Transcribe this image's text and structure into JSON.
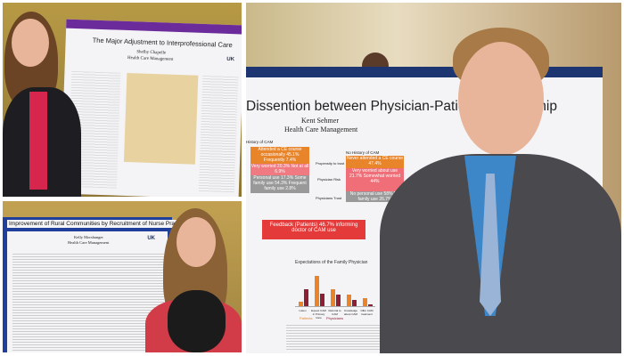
{
  "posters": {
    "top_left": {
      "title": "The Major Adjustment to Interprofessional Care",
      "author": "Shelby Chapelle",
      "program": "Health Care Management",
      "logo": "UK"
    },
    "bottom_left": {
      "title": "Improvement of Rural Communities by Recruitment of Nurse Practitioners",
      "author": "Kelly Morshanger",
      "program": "Health Care Management",
      "logo": "UK"
    },
    "right": {
      "title": "Dissention between Physician-Patient Relationship",
      "author": "Kent Sehmer",
      "program": "Health Care Management",
      "history": "History of CAM",
      "no_history": "No History of CAM",
      "box1": "Attended a CE course occasionally 45.1% Frequently 7.4%",
      "box2": "Very worried 20.3% Not at all 6.9%",
      "box3": "Personal use 17.3% Some family use 54.3% Frequent family use 2.8%",
      "box4": "Never attended a CE course 47.4%",
      "box5": "Very worried about use 21.7% Somewhat worried 44%",
      "box6": "No personal use 58% No family use 26.7%",
      "mid1": "Propensity to trust",
      "mid2": "Physician Risk",
      "mid3": "Physicians Trust",
      "feedback": "Feedback (Patients) 46.7% informing doctor of CAM use",
      "chart_title": "Expectations of the Family Physician",
      "chart_categories": [
        "Listen",
        "Expect CAM in Primary Care",
        "Referral to CAM",
        "Knowledge about CAM",
        "Offer CAM treatment"
      ],
      "chart_patients": [
        8,
        60,
        33,
        22,
        16
      ],
      "chart_physicians": [
        33,
        25,
        22,
        13,
        4
      ],
      "legend": [
        "Patients",
        "Physicians"
      ],
      "color_orange": "#e8842a",
      "color_maroon": "#8b2035",
      "color_red": "#e53a3a"
    }
  }
}
